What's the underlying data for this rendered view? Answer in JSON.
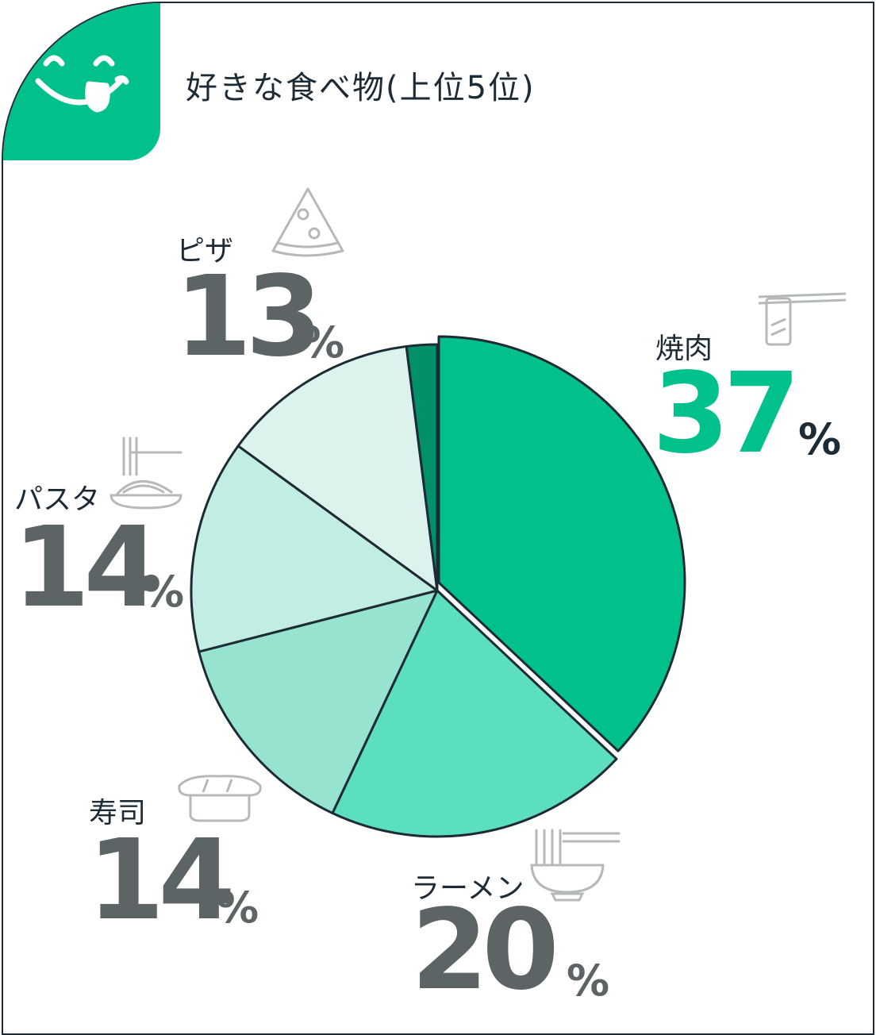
{
  "title": "好きな食べ物(上位5位)",
  "pct_sign": "%",
  "colors": {
    "accent": "#00c08b",
    "outline": "#1d2b36",
    "value_text": "#5d6466",
    "icon_stroke": "#b5b9ba"
  },
  "chart_data": {
    "type": "pie",
    "title": "好きな食べ物(上位5位)",
    "unit": "%",
    "slices": [
      {
        "label": "焼肉",
        "value": 37,
        "display": "37",
        "color": "#00c08b",
        "icon": "yakiniku-icon"
      },
      {
        "label": "ラーメン",
        "value": 20,
        "display": "20",
        "color": "#5bdfbf",
        "icon": "ramen-icon"
      },
      {
        "label": "寿司",
        "value": 14,
        "display": "14",
        "color": "#96e3cf",
        "icon": "sushi-icon"
      },
      {
        "label": "パスタ",
        "value": 14,
        "display": "14",
        "color": "#c1ede2",
        "icon": "pasta-icon"
      },
      {
        "label": "ピザ",
        "value": 13,
        "display": "13",
        "color": "#dcf2ec",
        "icon": "pizza-icon"
      },
      {
        "label": "",
        "value": 2,
        "display": "",
        "color": "#00906a",
        "icon": ""
      }
    ]
  }
}
